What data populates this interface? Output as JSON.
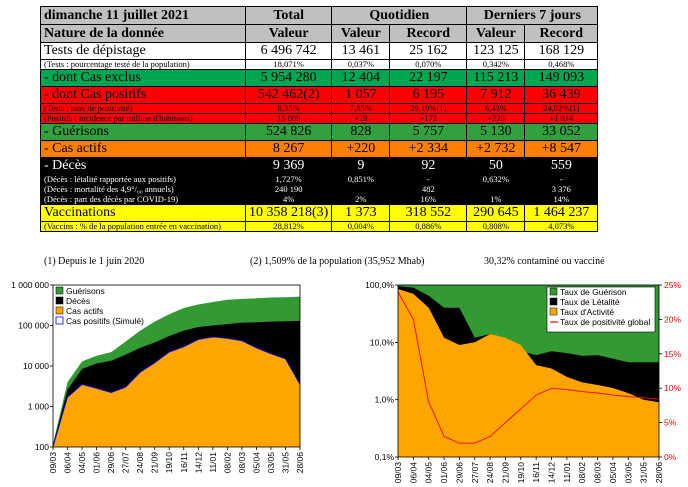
{
  "table": {
    "date": "dimanche 11 juillet 2021",
    "nature": "Nature de la donnée",
    "total_label": "Total",
    "total_sub": "Valeur",
    "quotidien_label": "Quotidien",
    "sept_label": "Derniers 7 jours",
    "valeur": "Valeur",
    "record": "Record",
    "rows": [
      {
        "kind": "big",
        "bg": "#ffffff",
        "fg": "#000000",
        "label": "Tests de dépistage",
        "cells": [
          "6 496 742",
          "13 461",
          "25 162",
          "123 125",
          "168 129"
        ]
      },
      {
        "kind": "small",
        "bg": "#ffffff",
        "fg": "#000000",
        "label": "(Tests : pourcentage testé de la population)",
        "cells": [
          "18,071%",
          "0,037%",
          "0,070%",
          "0,342%",
          "0,468%"
        ]
      },
      {
        "kind": "big",
        "bg": "#00a651",
        "fg": "#000000",
        "label": "- dont Cas exclus",
        "cells": [
          "5 954 280",
          "12 404",
          "22 197",
          "115 213",
          "149 093"
        ]
      },
      {
        "kind": "big",
        "bg": "#ff0000",
        "fg": "#000000",
        "label": "- dont Cas positifs",
        "cells": [
          "542 462(2)",
          "1 057",
          "6 195",
          "7 912",
          "36 439"
        ]
      },
      {
        "kind": "small",
        "bg": "#ff0000",
        "fg": "#000000",
        "label": "(Tests : taux de positivité)",
        "cells": [
          "8,35%",
          "7,85%",
          "29,19%(1)",
          "6,43%",
          "24,92%(1)"
        ]
      },
      {
        "kind": "small",
        "bg": "#ff0000",
        "fg": "#000000",
        "label": "(Positifs : incidence par million d'habitants)",
        "cells": [
          "15 089",
          "+29",
          "+172",
          "+220",
          "+1 014"
        ]
      },
      {
        "kind": "big",
        "bg": "#33a040",
        "fg": "#000000",
        "label": "- Guérisons",
        "cells": [
          "524 826",
          "828",
          "5 757",
          "5 130",
          "33 052"
        ]
      },
      {
        "kind": "big",
        "bg": "#ff7f00",
        "fg": "#000000",
        "label": "- Cas actifs",
        "cells": [
          "8 267",
          "+220",
          "+2 334",
          "+2 732",
          "+8 547"
        ]
      },
      {
        "kind": "big",
        "bg": "#000000",
        "fg": "#ffffff",
        "label": "- Décès",
        "cells": [
          "9 369",
          "9",
          "92",
          "50",
          "559"
        ]
      },
      {
        "kind": "small",
        "bg": "#000000",
        "fg": "#ffffff",
        "label": "(Décès : létalité rapportée aux positifs)",
        "cells": [
          "1,727%",
          "0,851%",
          "-",
          "0,632%",
          "-"
        ]
      },
      {
        "kind": "small",
        "bg": "#000000",
        "fg": "#ffffff",
        "label": "(Décès : mortalité des 4,9°/₀₀ annuels)",
        "cells": [
          "240 190",
          "",
          "482",
          "",
          "3 376"
        ]
      },
      {
        "kind": "small",
        "bg": "#000000",
        "fg": "#ffffff",
        "label": "(Décès : part des décès par COVID-19)",
        "cells": [
          "4%",
          "2%",
          "16%",
          "1%",
          "14%"
        ]
      },
      {
        "kind": "big",
        "bg": "#ffff00",
        "fg": "#000000",
        "label": "Vaccinations",
        "cells": [
          "10 358 218(3)",
          "1 373",
          "318 552",
          "290 645",
          "1 464 237"
        ]
      },
      {
        "kind": "small",
        "bg": "#ffff00",
        "fg": "#000000",
        "label": "(Vaccins : % de la population entrée en vaccination)",
        "cells": [
          "28,812%",
          "0,004%",
          "0,886%",
          "0,808%",
          "4,073%"
        ]
      }
    ]
  },
  "notes": {
    "n1": "(1) Depuis le 1 juin 2020",
    "n2": "(2) 1,509% de la population (35,952 Mhab)",
    "n3": "30,32% contaminé ou vacciné"
  },
  "colors": {
    "green": "#339933",
    "black": "#000000",
    "orange": "#ffa500",
    "blue": "#0000ff",
    "red": "#ff0000"
  },
  "chart_data": [
    {
      "type": "area",
      "yscale": "log",
      "ylim": [
        100,
        1000000
      ],
      "yticks": [
        "100",
        "1 000",
        "10 000",
        "100 000",
        "1 000 000"
      ],
      "xticks": [
        "09/03",
        "06/04",
        "04/05",
        "01/06",
        "29/06",
        "27/07",
        "24/08",
        "21/09",
        "19/10",
        "16/11",
        "14/12",
        "11/01",
        "08/02",
        "08/03",
        "05/04",
        "03/05",
        "31/05",
        "28/06"
      ],
      "x_dates": [
        "2020-03-09",
        "2020-04-06",
        "2020-05-04",
        "2020-06-01",
        "2020-06-29",
        "2020-07-27",
        "2020-08-24",
        "2020-09-21",
        "2020-10-19",
        "2020-11-16",
        "2020-12-14",
        "2021-01-11",
        "2021-02-08",
        "2021-03-08",
        "2021-04-05",
        "2021-05-03",
        "2021-05-31",
        "2021-06-28"
      ],
      "series": [
        {
          "name": "Guérisons",
          "color": "#339933",
          "values": [
            120,
            4000,
            13000,
            18000,
            22000,
            40000,
            75000,
            125000,
            190000,
            270000,
            330000,
            380000,
            430000,
            455000,
            470000,
            490000,
            500000,
            516000
          ]
        },
        {
          "name": "Décès",
          "color": "#000000",
          "values": [
            110,
            2600,
            8500,
            11500,
            13500,
            19000,
            28000,
            38000,
            55000,
            75000,
            92000,
            100000,
            108000,
            118000,
            120000,
            125000,
            128000,
            130000
          ]
        },
        {
          "name": "Cas actifs",
          "color": "#ffa500",
          "values": [
            100,
            1700,
            3500,
            2800,
            2200,
            3000,
            7000,
            12000,
            22000,
            30000,
            45000,
            52000,
            48000,
            42000,
            28000,
            20000,
            15000,
            3500
          ]
        },
        {
          "name": "Cas positifs (Simulé)",
          "color": "#0000ff",
          "values": [
            100,
            1700,
            3500,
            2800,
            2200,
            3000,
            7000,
            12000,
            22000,
            30000,
            45000,
            52000,
            48000,
            42000,
            28000,
            20000,
            15000,
            3500
          ]
        }
      ]
    },
    {
      "type": "area",
      "yscale": "log",
      "ylim": [
        0.1,
        100
      ],
      "y2lim": [
        0,
        25
      ],
      "yticks": [
        "0,1%",
        "1,0%",
        "10,0%",
        "100,0%"
      ],
      "y2ticks": [
        "0%",
        "5%",
        "10%",
        "15%",
        "20%",
        "25%"
      ],
      "xticks": [
        "09/03",
        "06/04",
        "04/05",
        "01/06",
        "29/06",
        "27/07",
        "24/08",
        "21/09",
        "19/10",
        "16/11",
        "14/12",
        "11/01",
        "08/02",
        "08/03",
        "05/04",
        "03/05",
        "31/05",
        "28/06"
      ],
      "x_dates": [
        "2020-03-09",
        "2020-04-06",
        "2020-05-04",
        "2020-06-01",
        "2020-06-29",
        "2020-07-27",
        "2020-08-24",
        "2020-09-21",
        "2020-10-19",
        "2020-11-16",
        "2020-12-14",
        "2021-01-11",
        "2021-02-08",
        "2021-03-08",
        "2021-04-05",
        "2021-05-03",
        "2021-05-31",
        "2021-06-28"
      ],
      "series": [
        {
          "name": "Taux de Guérison",
          "color": "#339933",
          "axis": "left",
          "values": [
            100,
            100,
            100,
            100,
            100,
            100,
            100,
            100,
            100,
            100,
            100,
            100,
            100,
            100,
            100,
            100,
            100,
            100
          ]
        },
        {
          "name": "Taux de Létalité",
          "color": "#000000",
          "axis": "left",
          "values": [
            95,
            90,
            65,
            40,
            40,
            12,
            14,
            10,
            7,
            6,
            7,
            6.5,
            5.8,
            6,
            5.2,
            4.5,
            4.5,
            4.5
          ]
        },
        {
          "name": "Taux d'Activité",
          "color": "#ffa500",
          "axis": "left",
          "values": [
            85,
            70,
            40,
            12,
            9,
            10,
            14,
            12,
            9,
            4,
            3.5,
            2.5,
            2,
            1.8,
            1.6,
            1.3,
            1,
            0.9
          ]
        },
        {
          "name": "Taux de positivité global",
          "color": "#ff0000",
          "axis": "right",
          "values": [
            24,
            20,
            8,
            3,
            2,
            2,
            3,
            5,
            7,
            9,
            10,
            9.8,
            9.5,
            9.3,
            9,
            8.8,
            8.6,
            8.4
          ]
        }
      ]
    }
  ]
}
